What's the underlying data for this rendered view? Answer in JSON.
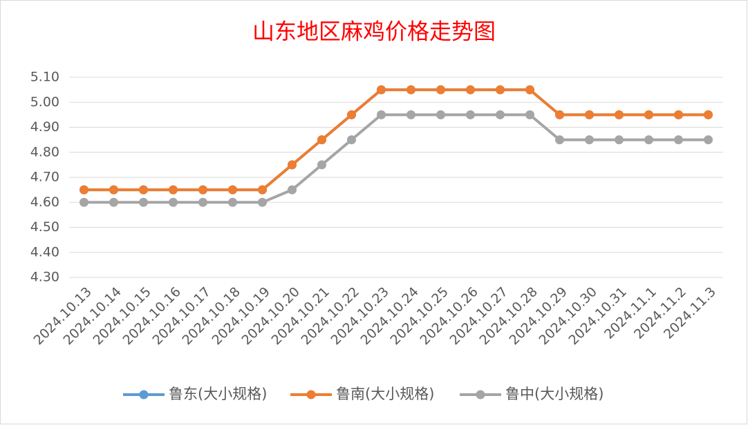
{
  "chart_data": {
    "type": "line",
    "title": "山东地区麻鸡价格走势图",
    "title_color": "#ff0000",
    "categories": [
      "2024.10.13",
      "2024.10.14",
      "2024.10.15",
      "2024.10.16",
      "2024.10.17",
      "2024.10.18",
      "2024.10.19",
      "2024.10.20",
      "2024.10.21",
      "2024.10.22",
      "2024.10.23",
      "2024.10.24",
      "2024.10.25",
      "2024.10.26",
      "2024.10.27",
      "2024.10.28",
      "2024.10.29",
      "2024.10.30",
      "2024.10.31",
      "2024.11.1",
      "2024.11.2",
      "2024.11.3"
    ],
    "series": [
      {
        "name": "鲁东(大小规格)",
        "color": "#5b9bd5",
        "values": [
          4.65,
          4.65,
          4.65,
          4.65,
          4.65,
          4.65,
          4.65,
          4.75,
          4.85,
          4.95,
          5.05,
          5.05,
          5.05,
          5.05,
          5.05,
          5.05,
          4.95,
          4.95,
          4.95,
          4.95,
          4.95,
          4.95
        ]
      },
      {
        "name": "鲁南(大小规格)",
        "color": "#ed7d31",
        "values": [
          4.65,
          4.65,
          4.65,
          4.65,
          4.65,
          4.65,
          4.65,
          4.75,
          4.85,
          4.95,
          5.05,
          5.05,
          5.05,
          5.05,
          5.05,
          5.05,
          4.95,
          4.95,
          4.95,
          4.95,
          4.95,
          4.95
        ]
      },
      {
        "name": "鲁中(大小规格)",
        "color": "#a5a5a5",
        "values": [
          4.6,
          4.6,
          4.6,
          4.6,
          4.6,
          4.6,
          4.6,
          4.65,
          4.75,
          4.85,
          4.95,
          4.95,
          4.95,
          4.95,
          4.95,
          4.95,
          4.85,
          4.85,
          4.85,
          4.85,
          4.85,
          4.85
        ]
      }
    ],
    "ylim": [
      4.3,
      5.1
    ],
    "yticks": [
      {
        "value": 4.3,
        "label": "4.30"
      },
      {
        "value": 4.4,
        "label": "4.40"
      },
      {
        "value": 4.5,
        "label": "4.50"
      },
      {
        "value": 4.6,
        "label": "4.60"
      },
      {
        "value": 4.7,
        "label": "4.70"
      },
      {
        "value": 4.8,
        "label": "4.80"
      },
      {
        "value": 4.9,
        "label": "4.90"
      },
      {
        "value": 5.0,
        "label": "5.00"
      },
      {
        "value": 5.1,
        "label": "5.10"
      }
    ],
    "grid": true,
    "legend": "bottom"
  }
}
